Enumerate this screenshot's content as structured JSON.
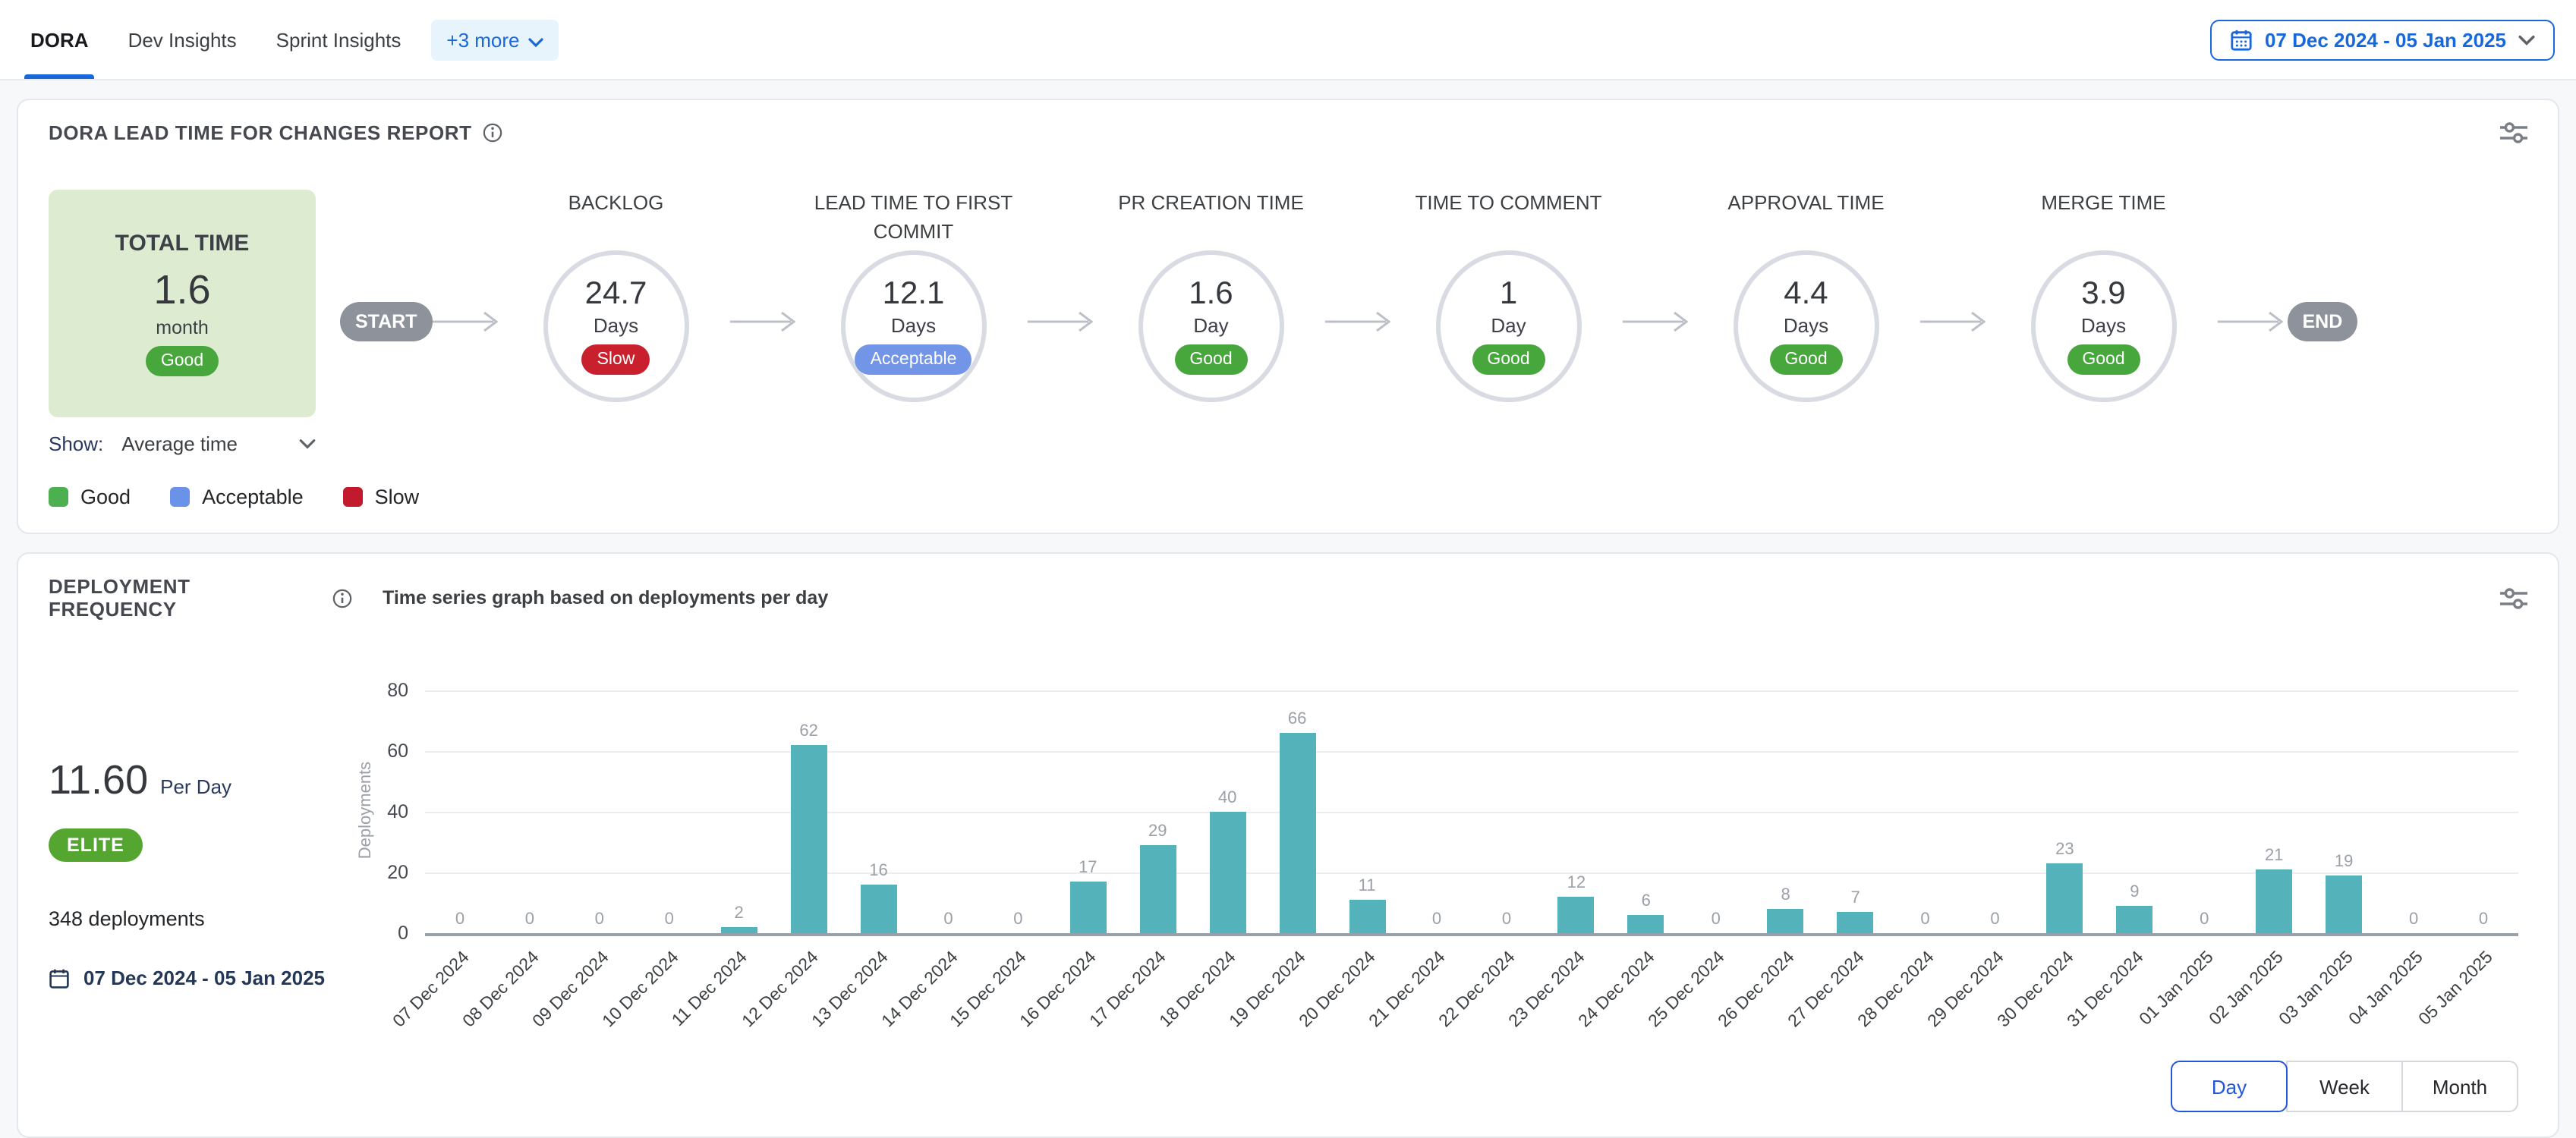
{
  "tabs": {
    "items": [
      {
        "label": "DORA",
        "active": true
      },
      {
        "label": "Dev Insights",
        "active": false
      },
      {
        "label": "Sprint Insights",
        "active": false
      }
    ],
    "more_label": "+3 more"
  },
  "date_picker": {
    "label": "07 Dec 2024 - 05 Jan 2025"
  },
  "icons": {
    "calendar": "calendar-icon",
    "info": "info-icon",
    "sliders": "sliders-icon",
    "chevron": "chevron-down-icon"
  },
  "colors": {
    "accent_blue": "#1868db",
    "good_green": "#47a63c",
    "acceptable_blue": "#7295e8",
    "slow_red": "#c8202c",
    "elite_green": "#55a630",
    "bar_teal": "#54b2bb"
  },
  "lead_time_card": {
    "title": "DORA LEAD TIME FOR CHANGES REPORT",
    "total": {
      "label": "TOTAL TIME",
      "value": "1.6",
      "unit": "month",
      "status": "Good"
    },
    "start_label": "START",
    "end_label": "END",
    "stages": [
      {
        "name": "BACKLOG",
        "value": "24.7",
        "unit": "Days",
        "status": "Slow"
      },
      {
        "name": "LEAD TIME TO FIRST COMMIT",
        "value": "12.1",
        "unit": "Days",
        "status": "Acceptable"
      },
      {
        "name": "PR CREATION TIME",
        "value": "1.6",
        "unit": "Day",
        "status": "Good"
      },
      {
        "name": "TIME TO COMMENT",
        "value": "1",
        "unit": "Day",
        "status": "Good"
      },
      {
        "name": "APPROVAL TIME",
        "value": "4.4",
        "unit": "Days",
        "status": "Good"
      },
      {
        "name": "MERGE TIME",
        "value": "3.9",
        "unit": "Days",
        "status": "Good"
      }
    ],
    "show_label": "Show:",
    "show_value": "Average time",
    "legend": [
      {
        "label": "Good",
        "color": "#4caf50"
      },
      {
        "label": "Acceptable",
        "color": "#6a92e8"
      },
      {
        "label": "Slow",
        "color": "#c21a2c"
      }
    ]
  },
  "deployment_card": {
    "title": "DEPLOYMENT FREQUENCY",
    "chart_title": "Time series graph based on deployments per day",
    "rate_value": "11.60",
    "rate_unit": "Per Day",
    "tier": "ELITE",
    "total_deployments": "348 deployments",
    "date_range": "07 Dec 2024 - 05 Jan 2025",
    "granularity": [
      {
        "label": "Day",
        "active": true
      },
      {
        "label": "Week",
        "active": false
      },
      {
        "label": "Month",
        "active": false
      }
    ]
  },
  "chart_data": {
    "type": "bar",
    "title": "Time series graph based on deployments per day",
    "xlabel": "",
    "ylabel": "Deployments",
    "ylim": [
      0,
      80
    ],
    "yticks": [
      0,
      20,
      40,
      60,
      80
    ],
    "grid": true,
    "bar_color": "#54b2bb",
    "categories": [
      "07 Dec 2024",
      "08 Dec 2024",
      "09 Dec 2024",
      "10 Dec 2024",
      "11 Dec 2024",
      "12 Dec 2024",
      "13 Dec 2024",
      "14 Dec 2024",
      "15 Dec 2024",
      "16 Dec 2024",
      "17 Dec 2024",
      "18 Dec 2024",
      "19 Dec 2024",
      "20 Dec 2024",
      "21 Dec 2024",
      "22 Dec 2024",
      "23 Dec 2024",
      "24 Dec 2024",
      "25 Dec 2024",
      "26 Dec 2024",
      "27 Dec 2024",
      "28 Dec 2024",
      "29 Dec 2024",
      "30 Dec 2024",
      "31 Dec 2024",
      "01 Jan 2025",
      "02 Jan 2025",
      "03 Jan 2025",
      "04 Jan 2025",
      "05 Jan 2025"
    ],
    "values": [
      0,
      0,
      0,
      0,
      2,
      62,
      16,
      0,
      0,
      17,
      29,
      40,
      66,
      11,
      0,
      0,
      12,
      6,
      0,
      8,
      7,
      0,
      0,
      23,
      9,
      0,
      21,
      19,
      0,
      0
    ]
  }
}
